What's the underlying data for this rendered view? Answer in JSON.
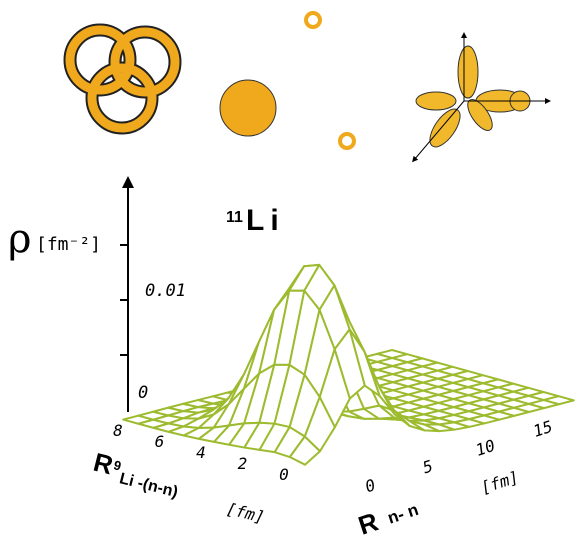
{
  "title": {
    "mass": "11",
    "element": "Li"
  },
  "z_axis": {
    "symbol": "ρ",
    "unit": "[fm⁻²]",
    "ticks": [
      "0",
      "0.01"
    ]
  },
  "y_axis": {
    "symbol": "R",
    "mass": "9",
    "subscript": "Li -(n-n)",
    "unit": "[fm]",
    "ticks": [
      "8",
      "6",
      "4",
      "2",
      "0"
    ]
  },
  "x_axis": {
    "symbol": "R",
    "subscript": "n- n",
    "unit": "[fm]",
    "ticks": [
      "0",
      "5",
      "10",
      "15"
    ]
  }
}
